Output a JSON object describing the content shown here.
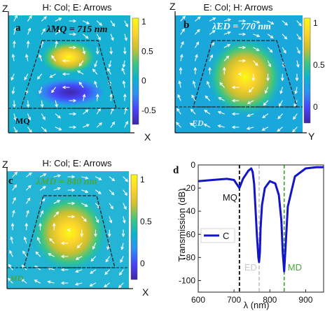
{
  "colors": {
    "colormap": [
      "#3e26a8",
      "#4743f8",
      "#2f8ef2",
      "#0cb3d0",
      "#3cc583",
      "#ccbf30",
      "#fdd42b",
      "#f9fb14"
    ],
    "outline": "#222222",
    "arrow": "#ffffff",
    "line": "#1515c8",
    "mq_line": "#000000",
    "ed_line": "#c8c8c8",
    "md_line": "#4aa83a"
  },
  "panels": [
    {
      "id": "a",
      "header": "H: Col; E: Arrows",
      "lambda_text": "λ̃MQ = 715 nm",
      "tag": "MQ",
      "x_axis": "X",
      "z_axis": "Z",
      "colorbar_ticks": [
        "1",
        "0.5",
        "0",
        "-0.5"
      ]
    },
    {
      "id": "b",
      "header": "E: Col; H: Arrows",
      "lambda_text": "λ̃ED = 770 nm",
      "tag": "ED",
      "x_axis": "Y",
      "z_axis": "Z",
      "colorbar_ticks": [
        "1",
        "0.5",
        "0"
      ]
    },
    {
      "id": "c",
      "header": "H: Col; E: Arrows",
      "lambda_text": "λMD = 840 nm",
      "tag": "MD",
      "x_axis": "X",
      "z_axis": "Z",
      "colorbar_ticks": [
        "1",
        "0.5",
        "0"
      ]
    }
  ],
  "chart_data": {
    "type": "line",
    "panel_label": "d",
    "xlabel": "λ (nm)",
    "ylabel": "Transmission (dB)",
    "xlim": [
      600,
      950
    ],
    "ylim": [
      -110,
      0
    ],
    "xticks": [
      600,
      700,
      800,
      900
    ],
    "yticks": [
      0,
      -20,
      -40,
      -60,
      -80,
      -100
    ],
    "legend": "C",
    "series": [
      {
        "name": "C",
        "x": [
          600,
          640,
          680,
          700,
          715,
          725,
          740,
          748,
          752,
          756,
          760,
          764,
          768,
          770,
          772,
          774,
          778,
          786,
          800,
          815,
          825,
          832,
          836,
          840,
          844,
          850,
          870,
          900,
          930,
          950
        ],
        "y": [
          -14,
          -13,
          -12,
          -13,
          -20,
          -12,
          -5,
          -3,
          -6,
          -16,
          -38,
          -62,
          -80,
          -84,
          -76,
          -55,
          -35,
          -20,
          -14,
          -16,
          -26,
          -48,
          -76,
          -92,
          -70,
          -36,
          -10,
          -3,
          -2,
          -2
        ]
      }
    ],
    "markers": [
      {
        "label": "MQ",
        "x": 715
      },
      {
        "label": "ED",
        "x": 770
      },
      {
        "label": "MD",
        "x": 840
      }
    ]
  }
}
